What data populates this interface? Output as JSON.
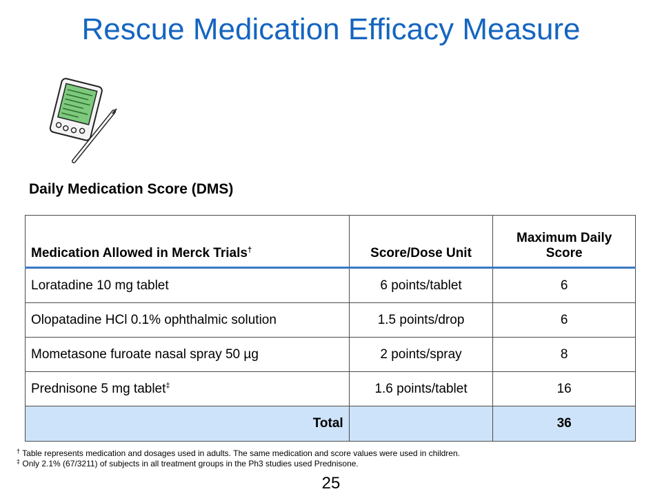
{
  "title": "Rescue Medication Efficacy Measure",
  "subtitle": "Daily Medication Score (DMS)",
  "table": {
    "headers": {
      "medication": "Medication Allowed in Merck Trials",
      "medication_mark": "†",
      "score": "Score/Dose Unit",
      "max": "Maximum Daily Score"
    },
    "rows": [
      {
        "medication": "Loratadine 10 mg tablet",
        "mark": "",
        "score": "6 points/tablet",
        "max": "6"
      },
      {
        "medication": "Olopatadine HCl 0.1% ophthalmic solution",
        "mark": "",
        "score": "1.5 points/drop",
        "max": "6"
      },
      {
        "medication": "Mometasone furoate nasal spray 50 µg",
        "mark": "",
        "score": "2 points/spray",
        "max": "8"
      },
      {
        "medication": "Prednisone 5 mg tablet",
        "mark": "‡",
        "score": "1.6 points/tablet",
        "max": "16"
      }
    ],
    "total": {
      "label": "Total",
      "score": "",
      "max": "36"
    }
  },
  "footnotes": [
    {
      "mark": "†",
      "text": "Table represents medication and dosages used in adults. The same medication and score values were used in children."
    },
    {
      "mark": "‡",
      "text": "Only 2.1% (67/3211) of subjects in all treatment groups in the Ph3 studies used Prednisone."
    }
  ],
  "page_number": "25",
  "colors": {
    "title": "#1565c0",
    "header_rule": "#3a78c4",
    "total_fill": "#cde3f9",
    "screen": "#7dc97d"
  }
}
